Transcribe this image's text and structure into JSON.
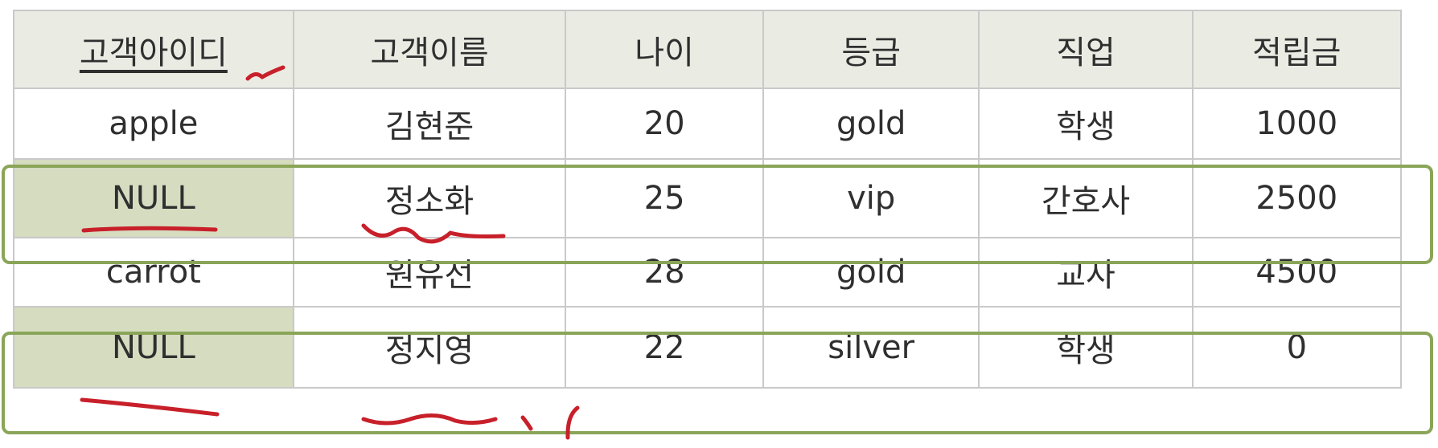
{
  "table": {
    "columns": [
      "고객아이디",
      "고객이름",
      "나이",
      "등급",
      "직업",
      "적립금"
    ],
    "rows": [
      [
        "apple",
        "김현준",
        "20",
        "gold",
        "학생",
        "1000"
      ],
      [
        "NULL",
        "정소화",
        "25",
        "vip",
        "간호사",
        "2500"
      ],
      [
        "carrot",
        "원유선",
        "28",
        "gold",
        "교사",
        "4500"
      ],
      [
        "NULL",
        "정지영",
        "22",
        "silver",
        "학생",
        "0"
      ]
    ]
  },
  "colors": {
    "header_bg": "#eaece4",
    "null_cell_bg": "#d5dcc0",
    "highlight_box": "#8aa558",
    "annotation_ink": "#c8202a",
    "grid_line": "#c9c9c9"
  }
}
